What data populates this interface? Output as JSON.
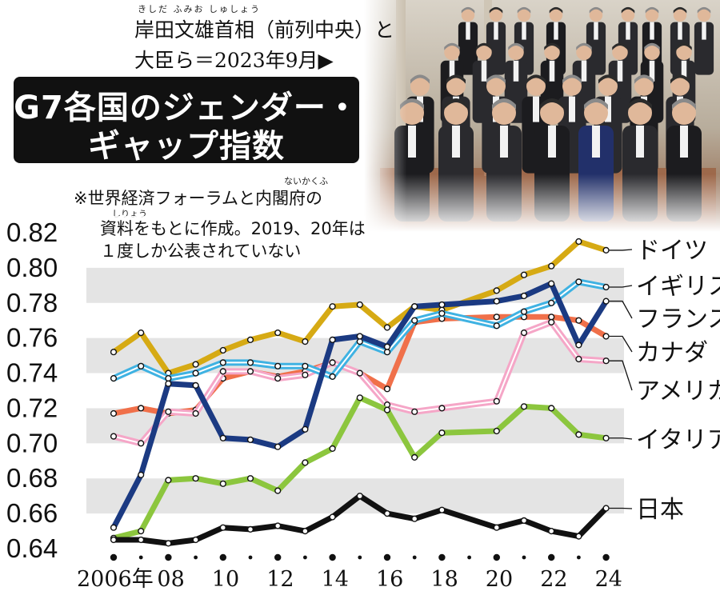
{
  "caption": {
    "ruby": "きしだ ふみお しゅしょう",
    "line1": "岸田文雄首相（前列中央）と",
    "line2": "大臣ら＝2023年9月▶"
  },
  "title": {
    "line1": "G7各国のジェンダー・",
    "line2": "ギャップ指数"
  },
  "note": {
    "ruby1": "ないかくふ",
    "line1": "※世界経済フォーラムと内閣府の",
    "ruby2": "しりょう",
    "line2": "資料をもとに作成。2019、20年は",
    "line3": "１度しか公表されていない"
  },
  "chart_data": {
    "type": "line",
    "title": "G7各国のジェンダー・ギャップ指数",
    "x": [
      2006,
      2007,
      2008,
      2009,
      2010,
      2011,
      2012,
      2013,
      2014,
      2015,
      2016,
      2017,
      2018,
      2020,
      2021,
      2022,
      2023,
      2024
    ],
    "ylim": [
      0.64,
      0.82
    ],
    "yticks": [
      "0.82",
      "0.80",
      "0.78",
      "0.76",
      "0.74",
      "0.72",
      "0.70",
      "0.68",
      "0.66",
      "0.64"
    ],
    "xticks": [
      "2006年",
      "08",
      "10",
      "12",
      "14",
      "16",
      "18",
      "20",
      "22",
      "24"
    ],
    "series": [
      {
        "name": "ドイツ",
        "color": "#d6aa14",
        "style": "solid",
        "values": [
          0.752,
          0.763,
          0.74,
          0.745,
          0.753,
          0.759,
          0.763,
          0.758,
          0.778,
          0.779,
          0.766,
          0.778,
          0.776,
          0.787,
          0.796,
          0.801,
          0.815,
          0.81
        ]
      },
      {
        "name": "イギリス",
        "color": "#3fb2e2",
        "style": "double",
        "values": [
          0.737,
          0.744,
          0.737,
          0.74,
          0.746,
          0.746,
          0.744,
          0.744,
          0.738,
          0.758,
          0.752,
          0.77,
          0.774,
          0.767,
          0.775,
          0.78,
          0.792,
          0.789
        ]
      },
      {
        "name": "フランス",
        "color": "#1b3a82",
        "style": "solid",
        "values": [
          0.652,
          0.682,
          0.734,
          0.733,
          0.703,
          0.702,
          0.698,
          0.708,
          0.759,
          0.761,
          0.755,
          0.778,
          0.779,
          0.781,
          0.784,
          0.791,
          0.756,
          0.781
        ]
      },
      {
        "name": "カナダ",
        "color": "#f0704a",
        "style": "solid",
        "values": [
          0.717,
          0.72,
          0.717,
          0.719,
          0.737,
          0.741,
          0.738,
          0.741,
          0.746,
          0.74,
          0.731,
          0.769,
          0.771,
          0.772,
          0.772,
          0.772,
          0.77,
          0.761
        ]
      },
      {
        "name": "アメリカ",
        "color": "#f5a6c7",
        "style": "double",
        "values": [
          0.704,
          0.7,
          0.718,
          0.717,
          0.741,
          0.741,
          0.737,
          0.739,
          0.746,
          0.74,
          0.722,
          0.718,
          0.72,
          0.724,
          0.763,
          0.769,
          0.748,
          0.747
        ]
      },
      {
        "name": "イタリア",
        "color": "#8cc63e",
        "style": "solid",
        "values": [
          0.646,
          0.65,
          0.679,
          0.68,
          0.677,
          0.68,
          0.673,
          0.689,
          0.697,
          0.726,
          0.719,
          0.692,
          0.706,
          0.707,
          0.721,
          0.72,
          0.705,
          0.703
        ]
      },
      {
        "name": "日本",
        "color": "#111111",
        "style": "solid",
        "values": [
          0.645,
          0.645,
          0.643,
          0.645,
          0.652,
          0.651,
          0.653,
          0.65,
          0.658,
          0.67,
          0.66,
          0.657,
          0.662,
          0.652,
          0.656,
          0.65,
          0.647,
          0.663
        ]
      }
    ]
  }
}
